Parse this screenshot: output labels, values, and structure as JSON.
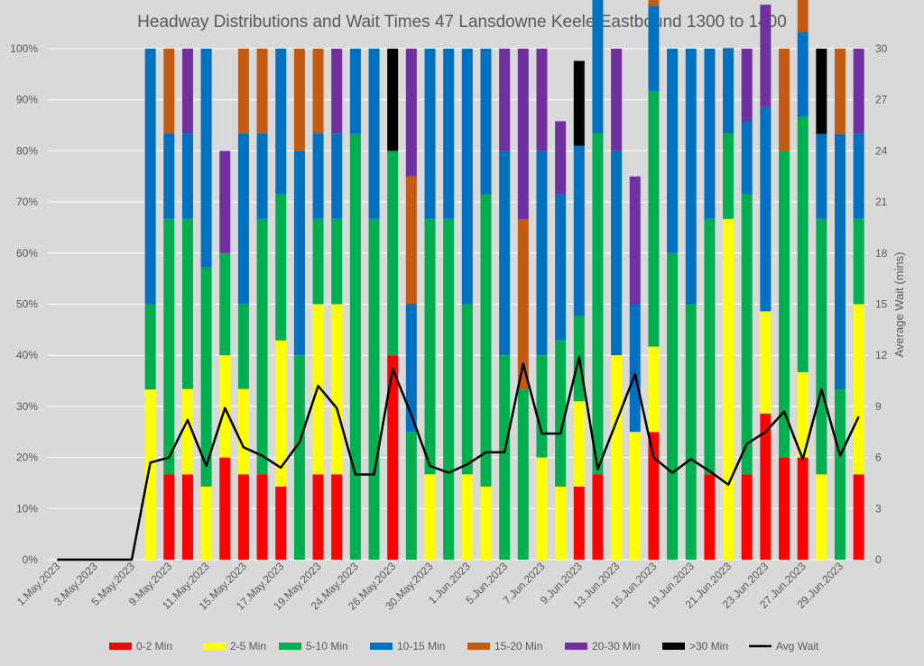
{
  "chart_data": {
    "type": "bar",
    "stacked": true,
    "percent_stacked": true,
    "title": "Headway Distributions and Wait Times 47 Lansdowne  Keele Eastbound 1300 to 1400",
    "ylabel": "",
    "y2label": "Average Wait (mins)",
    "ylim": [
      0,
      100
    ],
    "y2lim": [
      0,
      30
    ],
    "y_ticks": [
      "0%",
      "10%",
      "20%",
      "30%",
      "40%",
      "50%",
      "60%",
      "70%",
      "80%",
      "90%",
      "100%"
    ],
    "y2_ticks": [
      "0",
      "3",
      "6",
      "9",
      "12",
      "15",
      "18",
      "21",
      "24",
      "27",
      "30"
    ],
    "grid": true,
    "legend_position": "bottom",
    "categories": [
      "1.May.2023",
      "2.May.2023",
      "3.May.2023",
      "4.May.2023",
      "5.May.2023",
      "8.May.2023",
      "9.May.2023",
      "10.May.2023",
      "11.May.2023",
      "12.May.2023",
      "15.May.2023",
      "16.May.2023",
      "17.May.2023",
      "18.May.2023",
      "19.May.2023",
      "23.May.2023",
      "24.May.2023",
      "25.May.2023",
      "26.May.2023",
      "29.May.2023",
      "30.May.2023",
      "31.May.2023",
      "1.Jun.2023",
      "2.Jun.2023",
      "5.Jun.2023",
      "6.Jun.2023",
      "7.Jun.2023",
      "8.Jun.2023",
      "9.Jun.2023",
      "12.Jun.2023",
      "13.Jun.2023",
      "14.Jun.2023",
      "15.Jun.2023",
      "16.Jun.2023",
      "19.Jun.2023",
      "20.Jun.2023",
      "21.Jun.2023",
      "22.Jun.2023",
      "23.Jun.2023",
      "26.Jun.2023",
      "27.Jun.2023",
      "28.Jun.2023",
      "29.Jun.2023",
      "30.Jun.2023"
    ],
    "x_tick_labels": [
      "1.May.2023",
      "",
      "3.May.2023",
      "",
      "5.May.2023",
      "",
      "9.May.2023",
      "",
      "11.May.2023",
      "",
      "15.May.2023",
      "",
      "17.May.2023",
      "",
      "19.May.2023",
      "",
      "24.May.2023",
      "",
      "26.May.2023",
      "",
      "30.May.2023",
      "",
      "1.Jun.2023",
      "",
      "5.Jun.2023",
      "",
      "7.Jun.2023",
      "",
      "9.Jun.2023",
      "",
      "13.Jun.2023",
      "",
      "15.Jun.2023",
      "",
      "19.Jun.2023",
      "",
      "21.Jun.2023",
      "",
      "23.Jun.2023",
      "",
      "27.Jun.2023",
      "",
      "29.Jun.2023",
      ""
    ],
    "series": [
      {
        "name": "0-2 Min",
        "color": "#ff0000",
        "values": [
          0,
          0,
          0,
          0,
          0,
          0,
          16.7,
          16.7,
          0,
          20,
          16.7,
          16.7,
          14.3,
          0,
          16.7,
          16.7,
          0,
          0,
          40,
          0,
          0,
          0,
          0,
          0,
          0,
          0,
          0,
          0,
          14.3,
          16.7,
          0,
          0,
          25,
          0,
          0,
          16.7,
          0,
          16.7,
          28.6,
          20,
          20,
          0,
          0,
          16.7
        ]
      },
      {
        "name": "2-5 Min",
        "color": "#ffff00",
        "values": [
          0,
          0,
          0,
          0,
          0,
          33.3,
          0,
          16.7,
          14.3,
          20,
          16.7,
          0,
          28.6,
          0,
          33.3,
          33.3,
          0,
          0,
          0,
          0,
          16.7,
          0,
          16.7,
          14.3,
          0,
          0,
          20,
          14.3,
          16.7,
          0,
          40,
          25,
          16.7,
          0,
          0,
          0,
          66.7,
          0,
          20,
          0,
          16.7,
          16.7,
          0,
          33.3
        ]
      },
      {
        "name": "5-10 Min",
        "color": "#00b050",
        "values": [
          0,
          0,
          0,
          0,
          0,
          16.7,
          50,
          33.3,
          42.9,
          20,
          16.7,
          50,
          28.6,
          40,
          16.7,
          16.7,
          83.3,
          66.7,
          40,
          25,
          50,
          66.7,
          33.3,
          57.1,
          40,
          33.3,
          20,
          28.6,
          16.7,
          66.7,
          0,
          0,
          50,
          60,
          50,
          50,
          16.7,
          54.8,
          0,
          60,
          50,
          50,
          33.3,
          16.7
        ]
      },
      {
        "name": "10-15 Min",
        "color": "#0070c0",
        "values": [
          0,
          0,
          0,
          0,
          0,
          50,
          16.7,
          16.7,
          42.8,
          0,
          33.3,
          16.7,
          28.5,
          40,
          16.7,
          16.7,
          16.7,
          33.3,
          0,
          25,
          33.3,
          33.3,
          50,
          28.6,
          40,
          0,
          40,
          28.6,
          33.3,
          33.3,
          40,
          25,
          16.7,
          40,
          50,
          33.3,
          16.7,
          14.3,
          40,
          0,
          16.6,
          16.6,
          50,
          16.7
        ]
      },
      {
        "name": "15-20 Min",
        "color": "#c55a11",
        "values": [
          0,
          0,
          0,
          0,
          0,
          0,
          16.6,
          0,
          0,
          0,
          16.6,
          16.6,
          0,
          20,
          16.6,
          0,
          0,
          0,
          0,
          25,
          0,
          0,
          0,
          0,
          0,
          33.3,
          0,
          0,
          0,
          0,
          0,
          0,
          16.6,
          0,
          0,
          0,
          0,
          0,
          0,
          20,
          16.7,
          0,
          16.7,
          0
        ]
      },
      {
        "name": "20-30 Min",
        "color": "#7030a0",
        "values": [
          0,
          0,
          0,
          0,
          0,
          0,
          0,
          16.6,
          0,
          20,
          0,
          0,
          0,
          0,
          0,
          16.6,
          0,
          0,
          0,
          25,
          0,
          0,
          0,
          0,
          20,
          33.4,
          20,
          14.3,
          0,
          0,
          20,
          25,
          0,
          0,
          0,
          0,
          0,
          14.2,
          20,
          0,
          0,
          0,
          0,
          16.6
        ]
      },
      {
        "name": ">30 Min",
        "color": "#000000",
        "values": [
          0,
          0,
          0,
          0,
          0,
          0,
          0,
          0,
          0,
          0,
          0,
          0,
          0,
          0,
          0,
          0,
          0,
          0,
          20,
          0,
          0,
          0,
          0,
          0,
          0,
          0,
          0,
          0,
          16.6,
          0,
          0,
          0,
          0,
          0,
          0,
          0,
          0,
          0,
          0,
          0,
          0,
          16.7,
          0,
          0
        ]
      }
    ],
    "line_series": {
      "name": "Avg Wait",
      "color": "#000000",
      "axis": "secondary",
      "values": [
        0,
        0,
        0,
        0,
        0,
        5.7,
        6.0,
        8.2,
        5.5,
        8.9,
        6.6,
        6.1,
        5.4,
        6.9,
        10.2,
        8.9,
        5.0,
        5.0,
        11.2,
        8.5,
        5.5,
        5.1,
        5.6,
        6.3,
        6.3,
        11.5,
        7.4,
        7.4,
        11.9,
        5.3,
        8.1,
        10.9,
        6.0,
        5.1,
        5.9,
        5.2,
        4.4,
        6.8,
        7.5,
        8.7,
        5.9,
        10.0,
        6.1,
        8.4
      ]
    }
  }
}
